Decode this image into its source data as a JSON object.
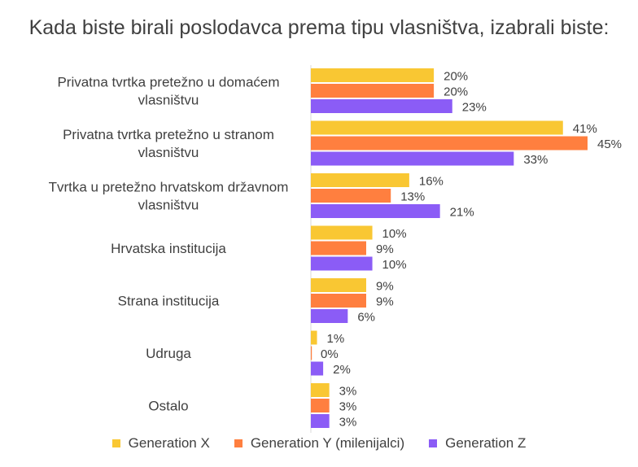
{
  "chart_data": {
    "type": "bar",
    "orientation": "horizontal",
    "title": "Kada biste birali poslodavca prema tipu vlasništva, izabrali biste:",
    "categories": [
      "Privatna tvrtka pretežno u domaćem vlasništvu",
      "Privatna tvrtka pretežno u stranom vlasništvu",
      "Tvrtka u pretežno hrvatskom državnom vlasništvu",
      "Hrvatska institucija",
      "Strana institucija",
      "Udruga",
      "Ostalo"
    ],
    "category_lines": [
      [
        "Privatna tvrtka pretežno u domaćem",
        "vlasništvu"
      ],
      [
        "Privatna tvrtka pretežno u stranom",
        "vlasništvu"
      ],
      [
        "Tvrtka u pretežno hrvatskom državnom",
        "vlasništvu"
      ],
      [
        "Hrvatska institucija"
      ],
      [
        "Strana institucija"
      ],
      [
        "Udruga"
      ],
      [
        "Ostalo"
      ]
    ],
    "series": [
      {
        "name": "Generation X",
        "color": "#F9C733",
        "values": [
          20,
          41,
          16,
          10,
          9,
          1,
          3
        ]
      },
      {
        "name": "Generation Y (milenijalci)",
        "color": "#FF7F3F",
        "values": [
          20,
          45,
          13,
          9,
          9,
          0,
          3
        ]
      },
      {
        "name": "Generation Z",
        "color": "#8B5CF6",
        "values": [
          23,
          33,
          21,
          10,
          6,
          2,
          3
        ]
      }
    ],
    "value_suffix": "%",
    "xlim": [
      0,
      45
    ],
    "grid": false,
    "legend_position": "bottom"
  }
}
